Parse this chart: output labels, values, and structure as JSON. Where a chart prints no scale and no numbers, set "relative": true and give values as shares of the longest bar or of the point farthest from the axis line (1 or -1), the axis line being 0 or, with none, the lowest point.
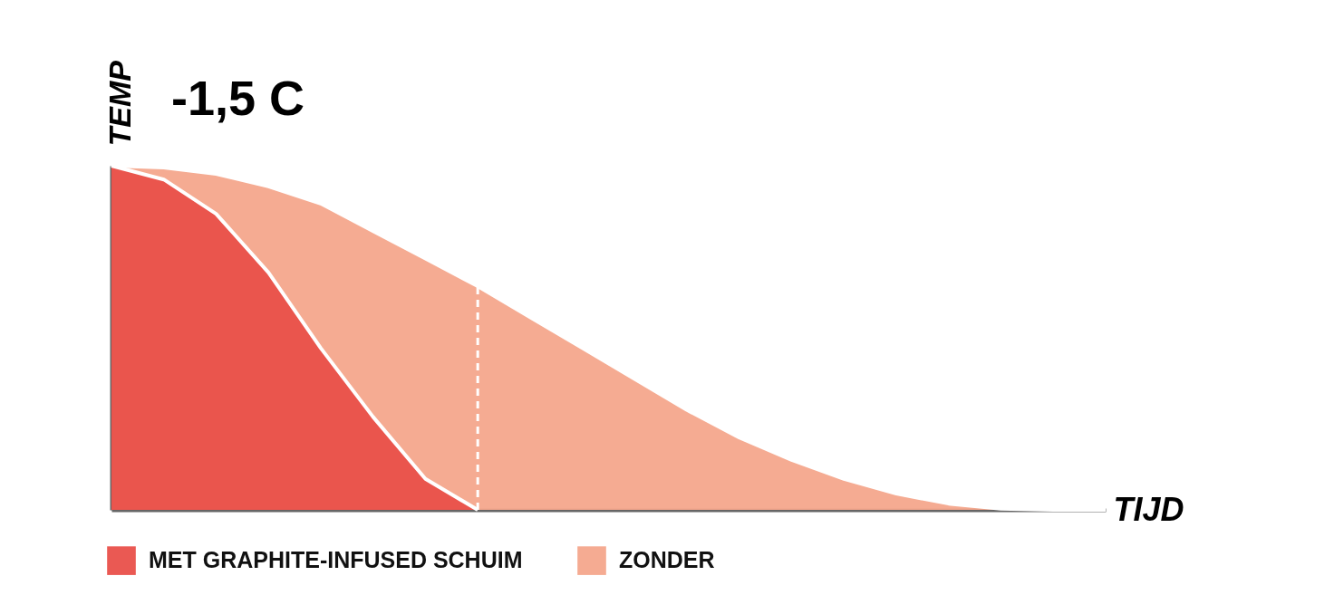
{
  "chart_data": {
    "type": "area",
    "relative": true,
    "xlabel": "TIJD",
    "ylabel": "TEMP",
    "annotations": [
      "-1,5 C"
    ],
    "categories": [
      null,
      null,
      null,
      null,
      null,
      null,
      null,
      null,
      null,
      null,
      null,
      null,
      null,
      null,
      null,
      null,
      null,
      null,
      null,
      null
    ],
    "legend": "bottom left",
    "series": [
      {
        "name": "MET GRAPHITE-INFUSED SCHUIM",
        "color": "#e9504a",
        "values": [
          1.0,
          0.96,
          0.86,
          0.69,
          0.47,
          0.27,
          0.09,
          0,
          null,
          null,
          null,
          null,
          null,
          null,
          null,
          null,
          null,
          null,
          null,
          null
        ]
      },
      {
        "name": "ZONDER",
        "color": "#f4a68c",
        "values": [
          1.0,
          0.995,
          0.976,
          0.94,
          0.89,
          0.81,
          0.73,
          0.65,
          0.56,
          0.47,
          0.38,
          0.29,
          0.21,
          0.145,
          0.09,
          0.047,
          0.018,
          0.003,
          0,
          0
        ]
      }
    ],
    "ref_lines": [
      {
        "axis": "x",
        "color": "#ffffff",
        "line_style": "dashed"
      }
    ]
  }
}
